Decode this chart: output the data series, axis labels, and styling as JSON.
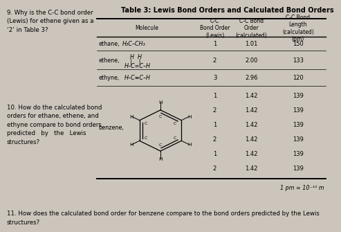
{
  "bg_color": "#ccc5bc",
  "title": "Table 3: Lewis Bond Orders and Calculated Bond Orders",
  "q9_text": "9. Why is the C-C bond order\n(Lewis) for ethene given as a\n‘2’ in Table 3?",
  "q10_text": "10. How do the calculated bond\norders for ethane, ethene, and\nethyne compare to bond orders\npredicted   by   the   Lewis\nstructures?",
  "q11_text": "11. How does the calculated bond order for benzene compare to the bond orders predicted by the Lewis\nstructures?",
  "col_headers": [
    "Molecule",
    "C-C\nBond Order\n(Lewis)",
    "C-C Bond\nOrder\n(calculated)",
    "C-C Bond\nLength\n(calculated)\n(pm)"
  ],
  "lewis_vals": [
    "1",
    "2",
    "3",
    "1",
    "2",
    "1",
    "2",
    "1",
    "2"
  ],
  "calc_vals": [
    "1.01",
    "2.00",
    "2.96",
    "1.42",
    "1.42",
    "1.42",
    "1.42",
    "1.42",
    "1.42"
  ],
  "len_vals": [
    "150",
    "133",
    "120",
    "139",
    "139",
    "139",
    "139",
    "139",
    "139"
  ],
  "footnote": "1 pm = 10⁻¹² m"
}
